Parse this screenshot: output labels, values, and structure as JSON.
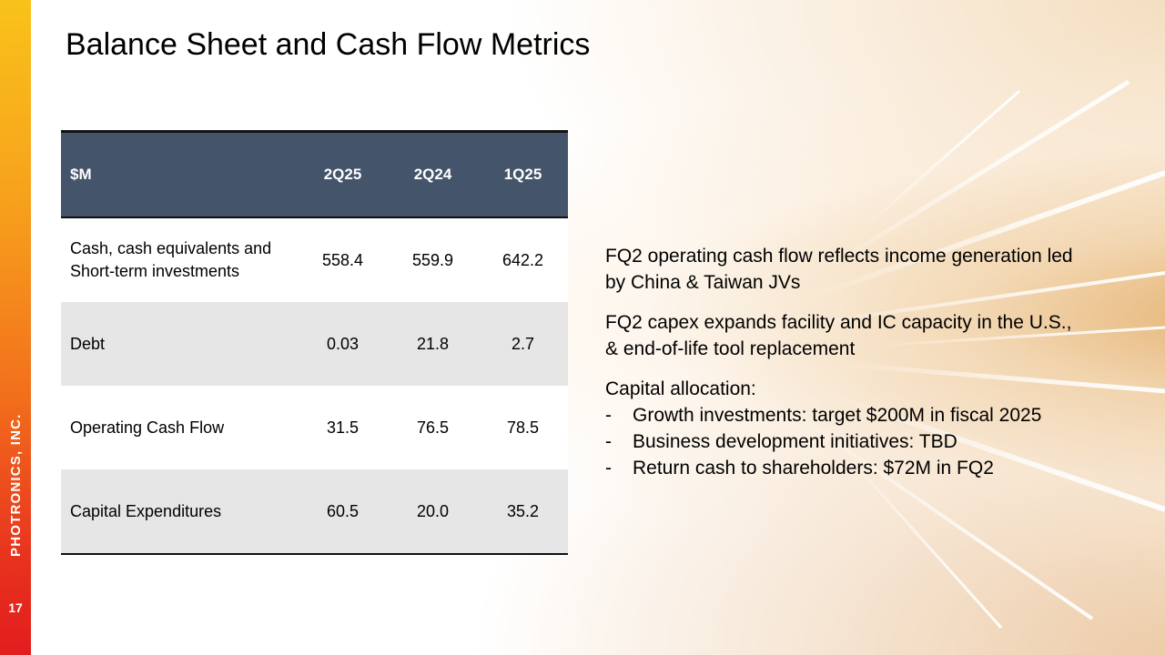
{
  "slide": {
    "title": "Balance Sheet and Cash Flow Metrics",
    "company": "PHOTRONICS, INC.",
    "page_number": "17"
  },
  "table": {
    "headers": [
      "$M",
      "2Q25",
      "2Q24",
      "1Q25"
    ],
    "rows": [
      {
        "label": "Cash, cash equivalents and Short-term investments",
        "values": [
          "558.4",
          "559.9",
          "642.2"
        ]
      },
      {
        "label": "Debt",
        "values": [
          "0.03",
          "21.8",
          "2.7"
        ]
      },
      {
        "label": "Operating Cash Flow",
        "values": [
          "31.5",
          "76.5",
          "78.5"
        ]
      },
      {
        "label": "Capital Expenditures",
        "values": [
          "60.5",
          "20.0",
          "35.2"
        ]
      }
    ]
  },
  "commentary": {
    "p1": "FQ2 operating cash flow reflects income generation led by China & Taiwan JVs",
    "p2": "FQ2 capex expands facility and IC capacity in the U.S., & end-of-life tool replacement",
    "allocation_heading": "Capital allocation:",
    "bullet_marker": "-",
    "allocation_items": [
      "Growth investments: target $200M in fiscal 2025",
      "Business development initiatives: TBD",
      "Return cash to shareholders: $72M in FQ2"
    ]
  },
  "colors": {
    "header_bg": "#44546a",
    "stripe": "#e7e6e6",
    "bar_top": "#f9c21a",
    "bar_bottom": "#e21d1e"
  }
}
